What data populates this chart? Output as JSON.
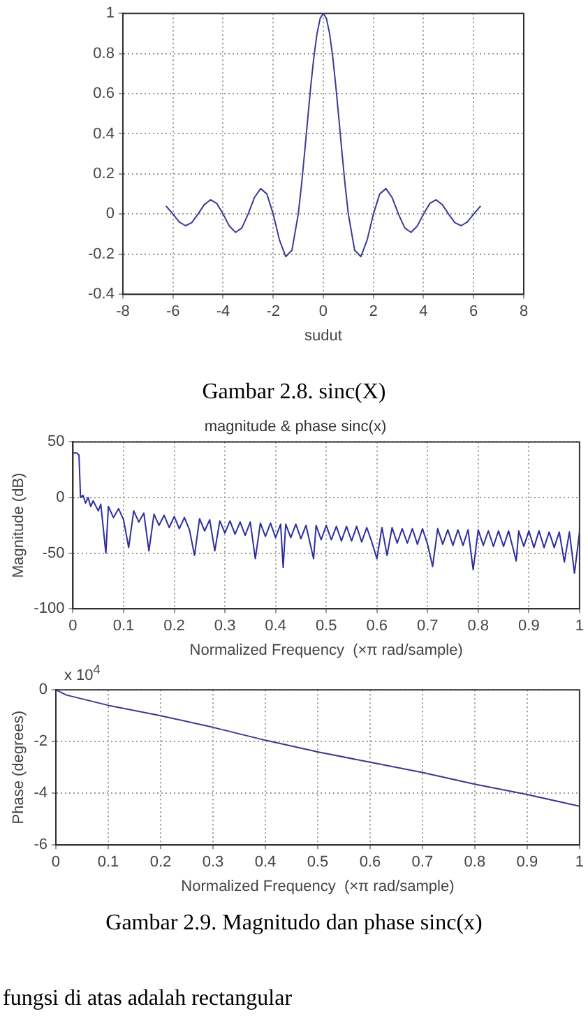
{
  "chart_data": [
    {
      "type": "line",
      "xlabel": "sudut",
      "xlim": [
        -8,
        8
      ],
      "xticks": [
        -8,
        -6,
        -4,
        -2,
        0,
        2,
        4,
        6,
        8
      ],
      "ylim": [
        -0.4,
        1
      ],
      "yticks": [
        -0.4,
        -0.2,
        0,
        0.2,
        0.4,
        0.6,
        0.8,
        1
      ],
      "grid": true,
      "marker": "none",
      "x": [
        -6.28,
        -6.25,
        -6,
        -5.75,
        -5.5,
        -5.25,
        -5,
        -4.75,
        -4.5,
        -4.25,
        -4,
        -3.75,
        -3.5,
        -3.25,
        -3,
        -2.75,
        -2.5,
        -2.25,
        -2,
        -1.75,
        -1.5,
        -1.25,
        -1,
        -0.875,
        -0.75,
        -0.625,
        -0.5,
        -0.375,
        -0.25,
        -0.125,
        0,
        0.125,
        0.25,
        0.375,
        0.5,
        0.625,
        0.75,
        0.875,
        1,
        1.25,
        1.5,
        1.75,
        2,
        2.25,
        2.5,
        2.75,
        3,
        3.25,
        3.5,
        3.75,
        4,
        4.25,
        4.5,
        4.75,
        5,
        5.25,
        5.5,
        5.75,
        6,
        6.25,
        6.28
      ],
      "series": [
        {
          "color": "#3c3c96",
          "values": [
            0.04,
            0.036,
            0,
            -0.039,
            -0.058,
            -0.043,
            0,
            0.047,
            0.071,
            0.053,
            0,
            -0.06,
            -0.091,
            -0.069,
            0,
            0.082,
            0.127,
            0.1,
            0,
            -0.129,
            -0.212,
            -0.18,
            0,
            0.139,
            0.3,
            0.471,
            0.637,
            0.784,
            0.9,
            0.975,
            1,
            0.975,
            0.9,
            0.784,
            0.637,
            0.471,
            0.3,
            0.139,
            0,
            -0.18,
            -0.212,
            -0.129,
            0,
            0.1,
            0.127,
            0.082,
            0,
            -0.069,
            -0.091,
            -0.06,
            0,
            0.053,
            0.071,
            0.047,
            0,
            -0.043,
            -0.058,
            -0.039,
            0,
            0.036,
            0.04
          ]
        }
      ],
      "annotations": [
        "Gambar 2.8. sinc(X)"
      ]
    },
    {
      "type": "line",
      "title": "magnitude & phase sinc(x)",
      "xlabel": "Normalized Frequency  (×π rad/sample)",
      "ylabel": "Magnitude (dB)",
      "xlim": [
        0,
        1
      ],
      "xticks": [
        0,
        0.1,
        0.2,
        0.3,
        0.4,
        0.5,
        0.6,
        0.7,
        0.8,
        0.9,
        1
      ],
      "ylim": [
        -100,
        50
      ],
      "yticks": [
        -100,
        -50,
        0,
        50
      ],
      "grid": true,
      "marker": "none",
      "x": [
        0,
        0.008,
        0.012,
        0.015,
        0.02,
        0.025,
        0.03,
        0.035,
        0.04,
        0.05,
        0.055,
        0.065,
        0.07,
        0.08,
        0.09,
        0.1,
        0.11,
        0.12,
        0.13,
        0.14,
        0.15,
        0.16,
        0.17,
        0.18,
        0.19,
        0.2,
        0.21,
        0.22,
        0.23,
        0.24,
        0.25,
        0.26,
        0.27,
        0.28,
        0.29,
        0.3,
        0.31,
        0.32,
        0.33,
        0.34,
        0.35,
        0.36,
        0.37,
        0.38,
        0.39,
        0.4,
        0.41,
        0.415,
        0.42,
        0.43,
        0.44,
        0.45,
        0.46,
        0.475,
        0.48,
        0.49,
        0.5,
        0.51,
        0.52,
        0.53,
        0.54,
        0.55,
        0.56,
        0.57,
        0.58,
        0.59,
        0.6,
        0.61,
        0.62,
        0.63,
        0.64,
        0.65,
        0.66,
        0.67,
        0.68,
        0.69,
        0.7,
        0.71,
        0.72,
        0.73,
        0.74,
        0.75,
        0.76,
        0.77,
        0.78,
        0.79,
        0.8,
        0.81,
        0.82,
        0.83,
        0.84,
        0.85,
        0.86,
        0.875,
        0.88,
        0.89,
        0.9,
        0.91,
        0.92,
        0.93,
        0.94,
        0.95,
        0.96,
        0.97,
        0.98,
        0.99,
        1
      ],
      "series": [
        {
          "color": "#2e2ea0",
          "values": [
            40,
            40,
            38,
            0,
            2,
            -5,
            0,
            -8,
            -3,
            -12,
            -6,
            -50,
            -8,
            -18,
            -10,
            -20,
            -45,
            -12,
            -22,
            -14,
            -48,
            -15,
            -25,
            -16,
            -27,
            -17,
            -28,
            -18,
            -29,
            -52,
            -19,
            -30,
            -20,
            -48,
            -21,
            -32,
            -21,
            -33,
            -22,
            -34,
            -22,
            -55,
            -23,
            -35,
            -23,
            -36,
            -24,
            -63,
            -24,
            -36,
            -24,
            -37,
            -25,
            -55,
            -25,
            -38,
            -25,
            -38,
            -26,
            -39,
            -26,
            -39,
            -26,
            -40,
            -27,
            -40,
            -55,
            -27,
            -52,
            -27,
            -41,
            -28,
            -41,
            -28,
            -42,
            -28,
            -42,
            -62,
            -28,
            -42,
            -29,
            -43,
            -29,
            -43,
            -29,
            -65,
            -29,
            -43,
            -30,
            -44,
            -30,
            -44,
            -30,
            -57,
            -30,
            -44,
            -30,
            -45,
            -30,
            -45,
            -31,
            -45,
            -31,
            -58,
            -31,
            -68,
            -31
          ]
        }
      ]
    },
    {
      "type": "line",
      "xlabel": "Normalized Frequency  (×π rad/sample)",
      "ylabel": "Phase (degrees)",
      "xlim": [
        0,
        1
      ],
      "xticks": [
        0,
        0.1,
        0.2,
        0.3,
        0.4,
        0.5,
        0.6,
        0.7,
        0.8,
        0.9,
        1
      ],
      "ylim": [
        -6,
        0
      ],
      "yticks": [
        -6,
        -4,
        -2,
        0
      ],
      "grid": true,
      "marker": "none",
      "x": [
        0,
        0.02,
        0.05,
        0.1,
        0.2,
        0.3,
        0.4,
        0.5,
        0.6,
        0.7,
        0.8,
        0.9,
        1
      ],
      "series": [
        {
          "color": "#3a3a90",
          "values": [
            0,
            -0.2,
            -0.35,
            -0.6,
            -1.0,
            -1.45,
            -1.95,
            -2.4,
            -2.8,
            -3.2,
            -3.65,
            -4.05,
            -4.5
          ]
        }
      ],
      "annotations": [
        "x 10$^{4}$",
        "Gambar 2.9. Magnitudo dan phase sinc(x)",
        "fungsi di atas adalah rectangular"
      ]
    }
  ]
}
